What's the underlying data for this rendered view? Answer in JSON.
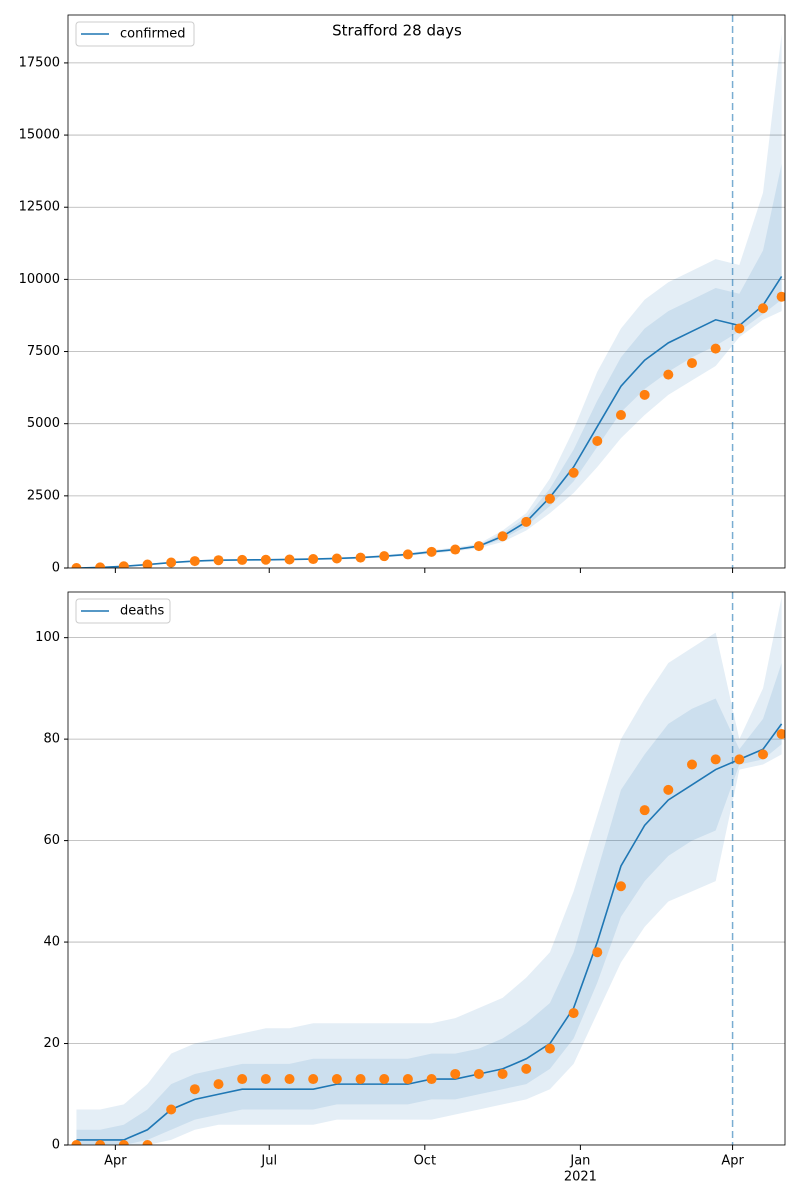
{
  "chart_data": [
    {
      "type": "line",
      "title": "Strafford 28 days",
      "x": [
        "2020-03-09",
        "2020-03-23",
        "2020-04-06",
        "2020-04-20",
        "2020-05-04",
        "2020-05-18",
        "2020-06-01",
        "2020-06-15",
        "2020-06-29",
        "2020-07-13",
        "2020-07-27",
        "2020-08-10",
        "2020-08-24",
        "2020-09-07",
        "2020-09-21",
        "2020-10-05",
        "2020-10-19",
        "2020-11-02",
        "2020-11-16",
        "2020-11-30",
        "2020-12-14",
        "2020-12-28",
        "2021-01-11",
        "2021-01-25",
        "2021-02-08",
        "2021-02-22",
        "2021-03-08",
        "2021-03-22",
        "2021-04-05",
        "2021-04-19",
        "2021-04-30"
      ],
      "series": [
        {
          "name": "confirmed",
          "color": "#1f77b4",
          "values": [
            0,
            20,
            60,
            120,
            190,
            240,
            270,
            280,
            285,
            295,
            310,
            330,
            360,
            410,
            470,
            560,
            640,
            760,
            1100,
            1600,
            2450,
            3500,
            4900,
            6300,
            7200,
            7800,
            8200,
            8600,
            8400,
            9100,
            10100
          ]
        }
      ],
      "observed": {
        "color": "#ff7f0e",
        "values": [
          0,
          20,
          60,
          120,
          190,
          240,
          270,
          280,
          285,
          295,
          310,
          330,
          360,
          410,
          470,
          560,
          640,
          760,
          1100,
          1600,
          2400,
          3300,
          4400,
          5300,
          6000,
          6700,
          7100,
          7600,
          8300,
          9000,
          9400
        ]
      },
      "bands": [
        {
          "color": "#1f77b4",
          "lower": [
            0,
            15,
            50,
            100,
            170,
            215,
            240,
            250,
            255,
            265,
            280,
            295,
            320,
            370,
            420,
            500,
            580,
            690,
            900,
            1300,
            1900,
            2600,
            3500,
            4500,
            5300,
            6000,
            6500,
            7000,
            8000,
            8600,
            8900
          ],
          "upper": [
            0,
            25,
            75,
            140,
            215,
            270,
            300,
            310,
            315,
            330,
            345,
            365,
            400,
            455,
            520,
            620,
            710,
            840,
            1300,
            1900,
            3100,
            4800,
            6800,
            8300,
            9300,
            9900,
            10300,
            10700,
            10500,
            13000,
            18500
          ]
        },
        {
          "color": "#1f77b4",
          "lower": [
            0,
            18,
            55,
            110,
            180,
            228,
            255,
            265,
            270,
            280,
            295,
            312,
            340,
            390,
            445,
            530,
            610,
            725,
            1000,
            1450,
            2150,
            3000,
            4200,
            5400,
            6200,
            6800,
            7300,
            7700,
            8200,
            8800,
            9300
          ],
          "upper": [
            0,
            22,
            67,
            130,
            202,
            255,
            285,
            295,
            300,
            312,
            328,
            348,
            380,
            432,
            495,
            590,
            675,
            800,
            1200,
            1750,
            2750,
            4100,
            5800,
            7300,
            8300,
            8900,
            9300,
            9700,
            9500,
            11000,
            14000
          ]
        }
      ],
      "vline": "2021-04-01",
      "legend": "upper left",
      "grid": true,
      "xlim": [
        "2020-03-04",
        "2021-05-02"
      ],
      "xticks": [
        {
          "value": "2020-04-01",
          "label": "Apr"
        },
        {
          "value": "2020-07-01",
          "label": "Jul"
        },
        {
          "value": "2020-10-01",
          "label": "Oct"
        },
        {
          "value": "2021-01-01",
          "label": "Jan",
          "sublabel": "2021"
        },
        {
          "value": "2021-04-01",
          "label": "Apr"
        }
      ],
      "ylim": [
        0,
        19160
      ],
      "yticks": [
        0,
        2500,
        5000,
        7500,
        10000,
        12500,
        15000,
        17500
      ]
    },
    {
      "type": "line",
      "x": [
        "2020-03-09",
        "2020-03-23",
        "2020-04-06",
        "2020-04-20",
        "2020-05-04",
        "2020-05-18",
        "2020-06-01",
        "2020-06-15",
        "2020-06-29",
        "2020-07-13",
        "2020-07-27",
        "2020-08-10",
        "2020-08-24",
        "2020-09-07",
        "2020-09-21",
        "2020-10-05",
        "2020-10-19",
        "2020-11-02",
        "2020-11-16",
        "2020-11-30",
        "2020-12-14",
        "2020-12-28",
        "2021-01-11",
        "2021-01-25",
        "2021-02-08",
        "2021-02-22",
        "2021-03-08",
        "2021-03-22",
        "2021-04-05",
        "2021-04-19",
        "2021-04-30"
      ],
      "series": [
        {
          "name": "deaths",
          "color": "#1f77b4",
          "values": [
            1,
            1,
            1,
            3,
            7,
            9,
            10,
            11,
            11,
            11,
            11,
            12,
            12,
            12,
            12,
            13,
            13,
            14,
            15,
            17,
            20,
            27,
            40,
            55,
            63,
            68,
            71,
            74,
            76,
            78,
            83
          ]
        }
      ],
      "observed": {
        "color": "#ff7f0e",
        "values": [
          0,
          0,
          0,
          0,
          7,
          11,
          12,
          13,
          13,
          13,
          13,
          13,
          13,
          13,
          13,
          13,
          14,
          14,
          14,
          15,
          19,
          26,
          38,
          51,
          66,
          70,
          75,
          76,
          76,
          77,
          81
        ]
      },
      "bands": [
        {
          "color": "#1f77b4",
          "lower": [
            0,
            0,
            0,
            0,
            1,
            3,
            4,
            4,
            4,
            4,
            4,
            5,
            5,
            5,
            5,
            5,
            6,
            7,
            8,
            9,
            11,
            16,
            26,
            36,
            43,
            48,
            50,
            52,
            74,
            75,
            77
          ],
          "upper": [
            7,
            7,
            8,
            12,
            18,
            20,
            21,
            22,
            23,
            23,
            24,
            24,
            24,
            24,
            24,
            24,
            25,
            27,
            29,
            33,
            38,
            50,
            65,
            80,
            88,
            95,
            98,
            101,
            80,
            90,
            108
          ]
        },
        {
          "color": "#1f77b4",
          "lower": [
            0,
            0,
            0,
            1,
            3,
            5,
            6,
            7,
            7,
            7,
            7,
            8,
            8,
            8,
            8,
            9,
            9,
            10,
            11,
            12,
            15,
            21,
            32,
            45,
            52,
            57,
            60,
            62,
            75,
            76,
            79
          ],
          "upper": [
            3,
            3,
            4,
            7,
            12,
            14,
            15,
            16,
            16,
            16,
            17,
            17,
            17,
            17,
            17,
            18,
            18,
            19,
            21,
            24,
            28,
            38,
            54,
            70,
            77,
            83,
            86,
            88,
            78,
            84,
            95
          ]
        }
      ],
      "vline": "2021-04-01",
      "legend": "upper left",
      "grid": true,
      "xlim": [
        "2020-03-04",
        "2021-05-02"
      ],
      "xticks": [
        {
          "value": "2020-04-01",
          "label": "Apr"
        },
        {
          "value": "2020-07-01",
          "label": "Jul"
        },
        {
          "value": "2020-10-01",
          "label": "Oct"
        },
        {
          "value": "2021-01-01",
          "label": "Jan",
          "sublabel": "2021"
        },
        {
          "value": "2021-04-01",
          "label": "Apr"
        }
      ],
      "ylim": [
        0,
        109
      ],
      "yticks": [
        0,
        20,
        40,
        60,
        80,
        100
      ]
    }
  ]
}
